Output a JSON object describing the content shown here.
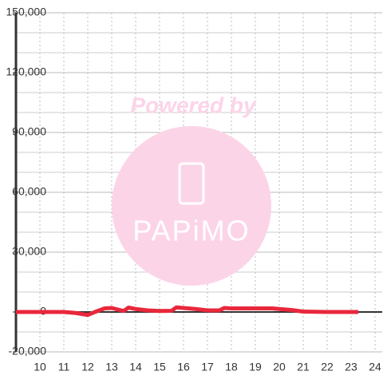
{
  "chart_data": {
    "type": "line",
    "watermark_top": "Powered by",
    "watermark_logo": "PAPiMO",
    "x": [
      9,
      10,
      11,
      11.5,
      12,
      12.3,
      12.7,
      13,
      13.5,
      13.7,
      14,
      14.5,
      15,
      15.5,
      15.7,
      16,
      16.5,
      17,
      17.5,
      17.7,
      18,
      19,
      19.7,
      20,
      20.5,
      21,
      22,
      23.3
    ],
    "series": [
      {
        "color": "#e8283c",
        "values": [
          0,
          0,
          0,
          -500,
          -1500,
          0,
          1800,
          2000,
          500,
          2200,
          1500,
          800,
          500,
          600,
          2300,
          2000,
          1500,
          800,
          800,
          2000,
          1800,
          1800,
          1800,
          1500,
          1000,
          200,
          0,
          0
        ]
      }
    ],
    "xlim": [
      9,
      24.3
    ],
    "xticks": [
      10,
      11,
      12,
      13,
      14,
      15,
      16,
      17,
      18,
      19,
      20,
      21,
      22,
      23,
      24
    ],
    "ylim": [
      -20000,
      150000
    ],
    "yticks": [
      {
        "value": -20000,
        "label": "-20,000"
      },
      {
        "value": 0,
        "label": "0"
      },
      {
        "value": 30000,
        "label": "30,000"
      },
      {
        "value": 60000,
        "label": "60,000"
      },
      {
        "value": 90000,
        "label": "90,000"
      },
      {
        "value": 120000,
        "label": "120,000"
      },
      {
        "value": 150000,
        "label": "150,000"
      }
    ],
    "minor_yticks": [
      -10000,
      10000,
      20000,
      40000,
      50000,
      70000,
      80000,
      100000,
      110000,
      130000,
      140000
    ],
    "grid": true
  }
}
